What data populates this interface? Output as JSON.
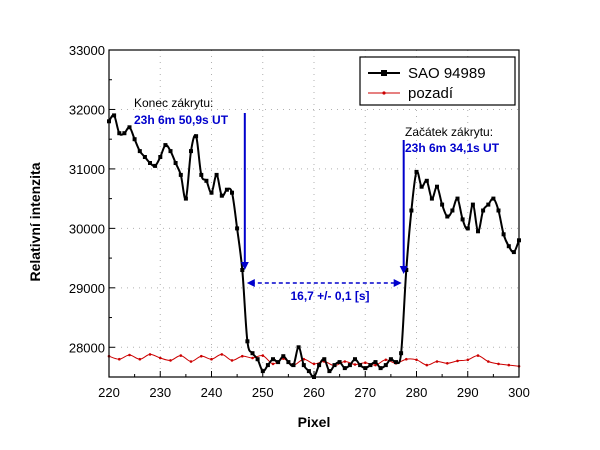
{
  "chart_data": {
    "type": "line",
    "xlabel": "Pixel",
    "ylabel": "Relativní intenzita",
    "xlim": [
      220,
      300
    ],
    "ylim": [
      27500,
      33000
    ],
    "xticks": [
      220,
      230,
      240,
      250,
      260,
      270,
      280,
      290,
      300
    ],
    "yticks": [
      28000,
      29000,
      30000,
      31000,
      32000,
      33000
    ],
    "grid": "dotted-inner",
    "legend_position": "top-right",
    "series": [
      {
        "name": "SAO 94989",
        "color": "#000000",
        "marker": "square",
        "x": [
          220,
          221,
          222,
          223,
          224,
          225,
          226,
          227,
          228,
          229,
          230,
          231,
          232,
          233,
          234,
          235,
          236,
          237,
          238,
          239,
          240,
          241,
          242,
          243,
          244,
          245,
          246,
          247,
          248,
          249,
          250,
          251,
          252,
          253,
          254,
          255,
          256,
          257,
          258,
          259,
          260,
          261,
          262,
          263,
          264,
          265,
          266,
          267,
          268,
          269,
          270,
          271,
          272,
          273,
          274,
          275,
          276,
          277,
          278,
          279,
          280,
          281,
          282,
          283,
          284,
          285,
          286,
          287,
          288,
          289,
          290,
          291,
          292,
          293,
          294,
          295,
          296,
          297,
          298,
          299,
          300
        ],
        "y": [
          31800,
          31900,
          31600,
          31600,
          31700,
          31500,
          31300,
          31200,
          31100,
          31050,
          31200,
          31400,
          31300,
          31100,
          30900,
          30500,
          31300,
          31550,
          30900,
          30800,
          30600,
          30900,
          30550,
          30650,
          30600,
          30000,
          29300,
          28100,
          27900,
          27800,
          27600,
          27700,
          27800,
          27750,
          27850,
          27750,
          27700,
          28000,
          27700,
          27600,
          27500,
          27700,
          27800,
          27600,
          27700,
          27750,
          27650,
          27700,
          27800,
          27700,
          27650,
          27700,
          27750,
          27650,
          27700,
          27800,
          27750,
          27900,
          29300,
          30300,
          30950,
          30700,
          30800,
          30500,
          30700,
          30400,
          30200,
          30300,
          30500,
          30150,
          30000,
          30400,
          29950,
          30300,
          30400,
          30500,
          30300,
          29900,
          29700,
          29600,
          29800
        ]
      },
      {
        "name": "pozadí",
        "color": "#cc0000",
        "marker": "dot",
        "x": [
          220,
          222,
          224,
          226,
          228,
          230,
          232,
          234,
          236,
          238,
          240,
          242,
          244,
          246,
          248,
          250,
          252,
          254,
          256,
          258,
          260,
          262,
          264,
          266,
          268,
          270,
          272,
          274,
          276,
          278,
          280,
          282,
          284,
          286,
          288,
          290,
          292,
          294,
          296,
          298,
          300
        ],
        "y": [
          27850,
          27800,
          27870,
          27800,
          27880,
          27820,
          27780,
          27860,
          27760,
          27850,
          27800,
          27880,
          27780,
          27850,
          27820,
          27860,
          27720,
          27810,
          27700,
          27800,
          27720,
          27760,
          27690,
          27760,
          27710,
          27740,
          27700,
          27790,
          27730,
          27800,
          27790,
          27700,
          27760,
          27730,
          27770,
          27790,
          27860,
          27760,
          27720,
          27700,
          27680
        ]
      }
    ],
    "annotations": [
      {
        "label": "Konec zákrytu:",
        "value": "23h 6m 50,9s UT",
        "marker_x": 246.5
      },
      {
        "label": "Začátek zákrytu:",
        "value": "23h 6m 34,1s UT",
        "marker_x": 277.5
      },
      {
        "label": "16,7 +/- 0,1 [s]",
        "from_x": 246.5,
        "to_x": 277.5,
        "at_y": 29080
      }
    ]
  }
}
